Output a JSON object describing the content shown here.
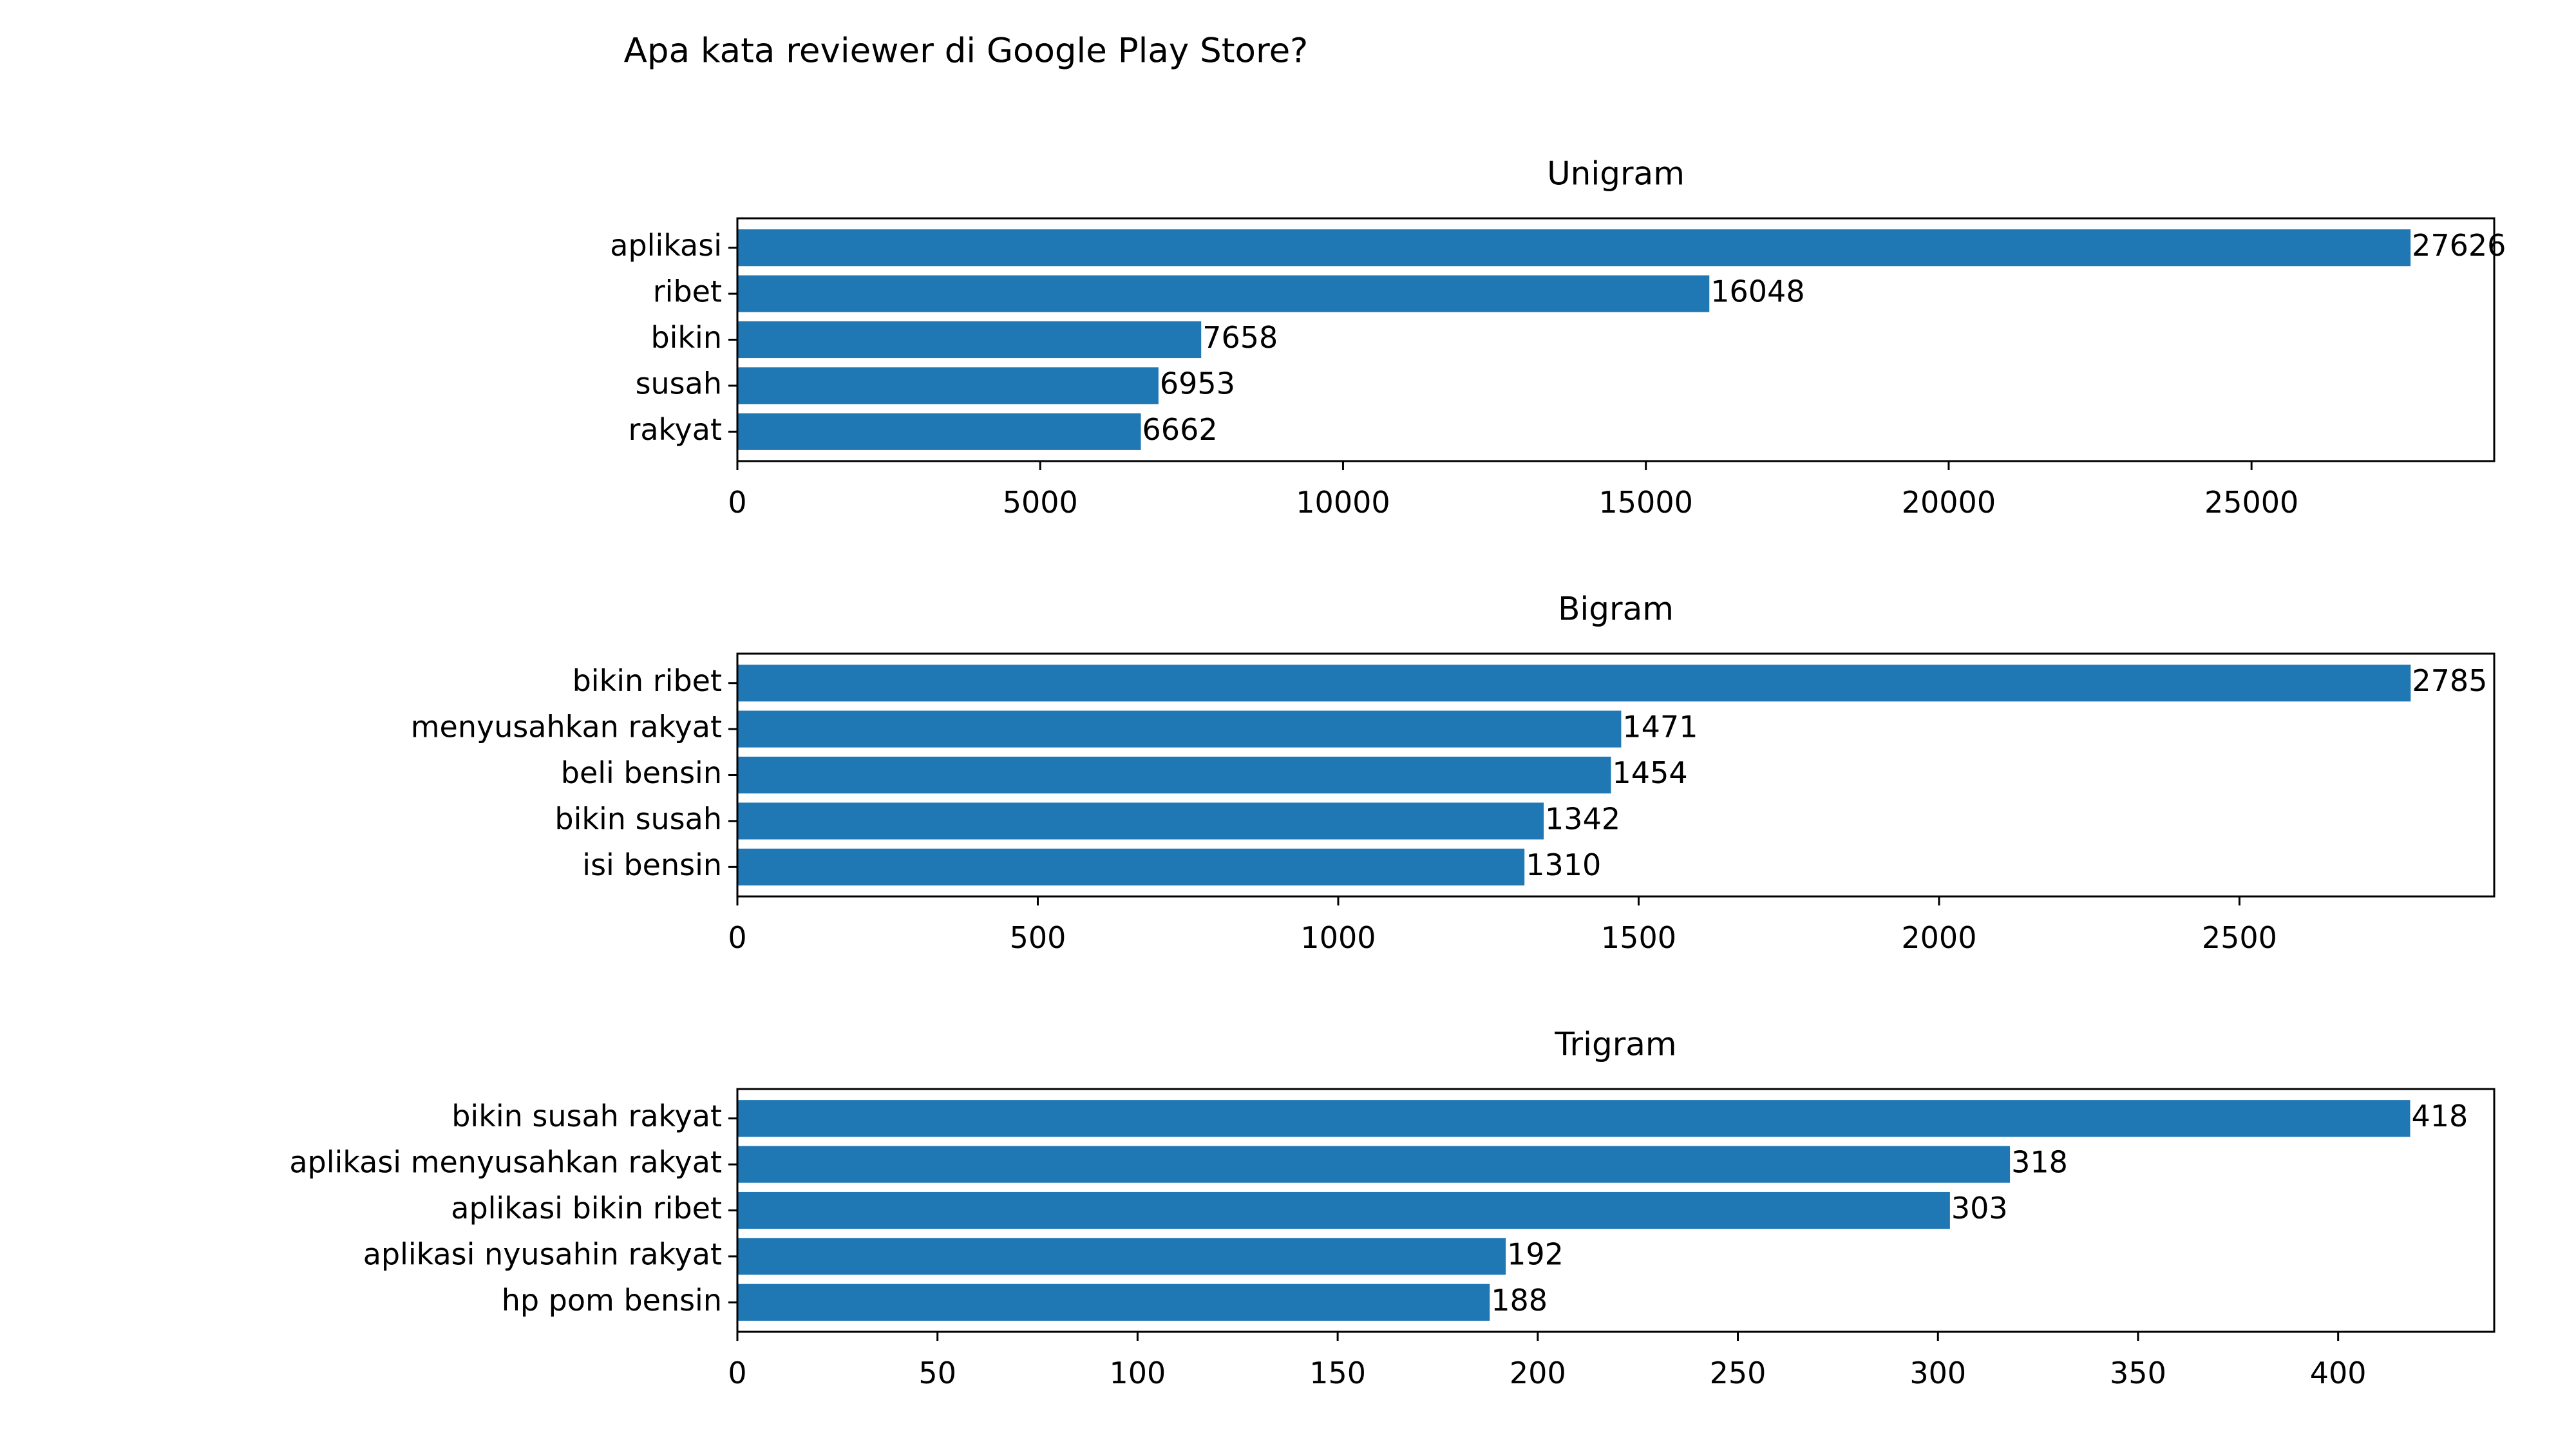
{
  "figure_title": "Apa kata reviewer di Google Play Store?",
  "colors": {
    "bar": "#1f77b4",
    "axis": "#000000",
    "background": "#ffffff"
  },
  "chart_data": [
    {
      "type": "bar",
      "orientation": "horizontal",
      "title": "Unigram",
      "xlabel": "",
      "ylabel": "",
      "categories": [
        "aplikasi",
        "ribet",
        "bikin",
        "susah",
        "rakyat"
      ],
      "values": [
        27626,
        16048,
        7658,
        6953,
        6662
      ],
      "xlim": [
        0,
        29007
      ],
      "xticks": [
        0,
        5000,
        10000,
        15000,
        20000,
        25000
      ],
      "data_labels": true,
      "grid": false,
      "legend": "none"
    },
    {
      "type": "bar",
      "orientation": "horizontal",
      "title": "Bigram",
      "xlabel": "",
      "ylabel": "",
      "categories": [
        "bikin ribet",
        "menyusahkan rakyat",
        "beli bensin",
        "bikin susah",
        "isi bensin"
      ],
      "values": [
        2785,
        1471,
        1454,
        1342,
        1310
      ],
      "xlim": [
        0,
        2924
      ],
      "xticks": [
        0,
        500,
        1000,
        1500,
        2000,
        2500
      ],
      "data_labels": true,
      "grid": false,
      "legend": "none"
    },
    {
      "type": "bar",
      "orientation": "horizontal",
      "title": "Trigram",
      "xlabel": "",
      "ylabel": "",
      "categories": [
        "bikin susah rakyat",
        "aplikasi menyusahkan rakyat",
        "aplikasi bikin ribet",
        "aplikasi nyusahin rakyat",
        "hp pom bensin"
      ],
      "values": [
        418,
        318,
        303,
        192,
        188
      ],
      "xlim": [
        0,
        439
      ],
      "xticks": [
        0,
        50,
        100,
        150,
        200,
        250,
        300,
        350,
        400
      ],
      "data_labels": true,
      "grid": false,
      "legend": "none"
    }
  ]
}
